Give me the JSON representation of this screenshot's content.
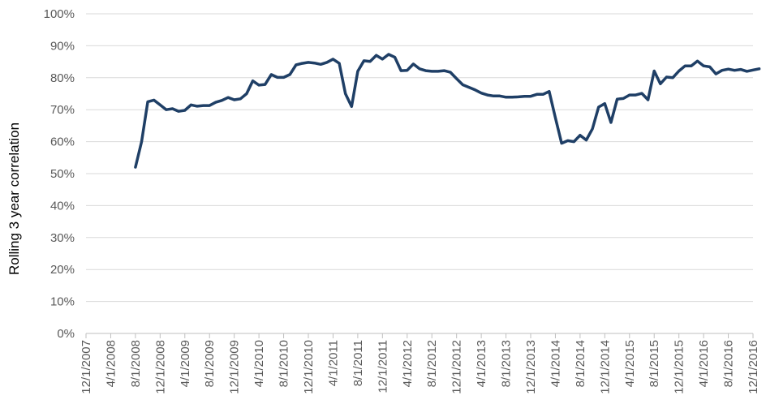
{
  "chart_data": {
    "type": "line",
    "title": "",
    "xlabel": "",
    "ylabel": "Rolling 3 year correlation",
    "ylim": [
      0,
      100
    ],
    "y_unit": "%",
    "y_ticks": [
      "0%",
      "10%",
      "20%",
      "30%",
      "40%",
      "50%",
      "60%",
      "70%",
      "80%",
      "90%",
      "100%"
    ],
    "x_start": "12/1/2007",
    "x_end": "12/1/2016",
    "x_ticks": [
      "12/1/2007",
      "4/1/2008",
      "8/1/2008",
      "12/1/2008",
      "4/1/2009",
      "8/1/2009",
      "12/1/2009",
      "4/1/2010",
      "8/1/2010",
      "12/1/2010",
      "4/1/2011",
      "8/1/2011",
      "12/1/2011",
      "4/1/2012",
      "8/1/2012",
      "12/1/2012",
      "4/1/2013",
      "8/1/2013",
      "12/1/2013",
      "4/1/2014",
      "8/1/2014",
      "12/1/2014",
      "4/1/2015",
      "8/1/2015",
      "12/1/2015",
      "4/1/2016",
      "8/1/2016",
      "12/1/2016"
    ],
    "grid": true,
    "line_color": "#1f3f66",
    "grid_color": "#d9d9d9",
    "series": [
      {
        "x": [
          "2008-08",
          "2008-09",
          "2008-10",
          "2008-11",
          "2008-12",
          "2009-01",
          "2009-02",
          "2009-03",
          "2009-04",
          "2009-05",
          "2009-06",
          "2009-07",
          "2009-08",
          "2009-09",
          "2009-10",
          "2009-11",
          "2009-12",
          "2010-01",
          "2010-02",
          "2010-03",
          "2010-04",
          "2010-05",
          "2010-06",
          "2010-07",
          "2010-08",
          "2010-09",
          "2010-10",
          "2010-11",
          "2010-12",
          "2011-01",
          "2011-02",
          "2011-03",
          "2011-04",
          "2011-05",
          "2011-06",
          "2011-07",
          "2011-08",
          "2011-09",
          "2011-10",
          "2011-11",
          "2011-12",
          "2012-01",
          "2012-02",
          "2012-03",
          "2012-04",
          "2012-05",
          "2012-06",
          "2012-07",
          "2012-08",
          "2012-09",
          "2012-10",
          "2012-11",
          "2012-12",
          "2013-01",
          "2013-02",
          "2013-03",
          "2013-04",
          "2013-05",
          "2013-06",
          "2013-07",
          "2013-08",
          "2013-09",
          "2013-10",
          "2013-11",
          "2013-12",
          "2014-01",
          "2014-02",
          "2014-03",
          "2014-04",
          "2014-05",
          "2014-06",
          "2014-07",
          "2014-08",
          "2014-09",
          "2014-10",
          "2014-11",
          "2014-12",
          "2015-01",
          "2015-02",
          "2015-03",
          "2015-04",
          "2015-05",
          "2015-06",
          "2015-07",
          "2015-08",
          "2015-09",
          "2015-10",
          "2015-11",
          "2015-12",
          "2016-01",
          "2016-02",
          "2016-03",
          "2016-04",
          "2016-05",
          "2016-06",
          "2016-07",
          "2016-08",
          "2016-09",
          "2016-10",
          "2016-11",
          "2016-12",
          "2017-01"
        ],
        "values": [
          52,
          60,
          72.5,
          73,
          71.5,
          70,
          70.3,
          69.5,
          69.8,
          71.5,
          71.1,
          71.3,
          71.3,
          72.3,
          72.9,
          73.8,
          73.1,
          73.4,
          75,
          79,
          77.7,
          77.9,
          81,
          80.1,
          80.1,
          81,
          84,
          84.5,
          84.8,
          84.6,
          84.2,
          84.8,
          85.8,
          84.5,
          75,
          71,
          82,
          85.3,
          85.1,
          87,
          85.8,
          87.3,
          86.4,
          82.2,
          82.3,
          84.3,
          82.8,
          82.2,
          82,
          82,
          82.2,
          81.7,
          79.7,
          77.8,
          77,
          76.2,
          75.2,
          74.6,
          74.3,
          74.3,
          73.9,
          73.9,
          74,
          74.2,
          74.2,
          74.8,
          74.8,
          75.7,
          67.5,
          59.5,
          60.3,
          60,
          62,
          60.5,
          64,
          70.8,
          71.9,
          66,
          73.3,
          73.5,
          74.6,
          74.6,
          75.1,
          73.1,
          82.1,
          78.1,
          80.2,
          80,
          82.1,
          83.7,
          83.7,
          85.2,
          83.7,
          83.4,
          81.2,
          82.3,
          82.7,
          82.3,
          82.6,
          82,
          82.4,
          82.8
        ]
      }
    ]
  }
}
